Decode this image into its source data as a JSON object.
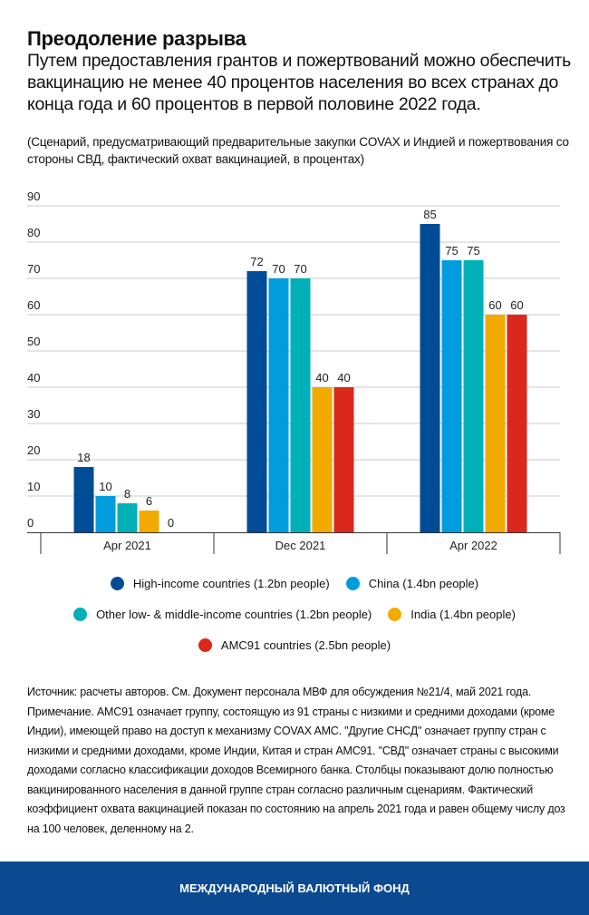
{
  "header": {
    "title": "Преодоление разрыва",
    "subtitle": "Путем предоставления грантов и пожертвований можно обеспечить вакцинацию не менее 40 процентов населения во всех странах до конца года и 60 процентов в первой половине 2022 года.",
    "note": "(Сценарий, предусматривающий предварительные закупки COVAX и Индией и пожертвования со стороны СВД, фактический охват вакцинацией, в процентах)"
  },
  "chart_data": {
    "type": "bar",
    "categories": [
      "Apr 2021",
      "Dec 2021",
      "Apr 2022"
    ],
    "ylim": [
      0,
      90
    ],
    "yticks": [
      0,
      10,
      20,
      30,
      40,
      50,
      60,
      70,
      80,
      90
    ],
    "grid": true,
    "legend_position": "bottom",
    "series": [
      {
        "name": "High-income countries (1.2bn people)",
        "color": "#004C97",
        "values": [
          18,
          72,
          85
        ]
      },
      {
        "name": "China (1.4bn people)",
        "color": "#009CDE",
        "values": [
          10,
          70,
          75
        ]
      },
      {
        "name": "Other low- & middle-income countries (1.2bn people)",
        "color": "#00B0B9",
        "values": [
          8,
          70,
          75
        ]
      },
      {
        "name": "India (1.4bn people)",
        "color": "#F2A900",
        "values": [
          6,
          40,
          60
        ]
      },
      {
        "name": "AMC91 countries (2.5bn people)",
        "color": "#DA291C",
        "values": [
          0,
          40,
          60
        ]
      }
    ]
  },
  "source": "Источник: расчеты авторов. См. Документ персонала МВФ для обсуждения №21/4, май 2021 года. Примечание. АМС91 означает группу, состоящую из 91 страны с низкими и средними доходами (кроме Индии), имеющей право на доступ к механизму COVAX AMC. \"Другие СНСД\" означает группу стран с низкими и средними доходами, кроме Индии, Китая и стран АМС91. \"СВД\" означает страны с высокими доходами согласно классификации доходов Всемирного банка. Столбцы показывают долю полностью вакцинированного населения в данной группе стран согласно различным сценариям. Фактический коэффициент охвата вакцинацией показан по состоянию на апрель 2021 года и равен общему числу доз на 100 человек, деленному на 2.",
  "footer": "МЕЖДУНАРОДНЫЙ ВАЛЮТНЫЙ ФОНД"
}
